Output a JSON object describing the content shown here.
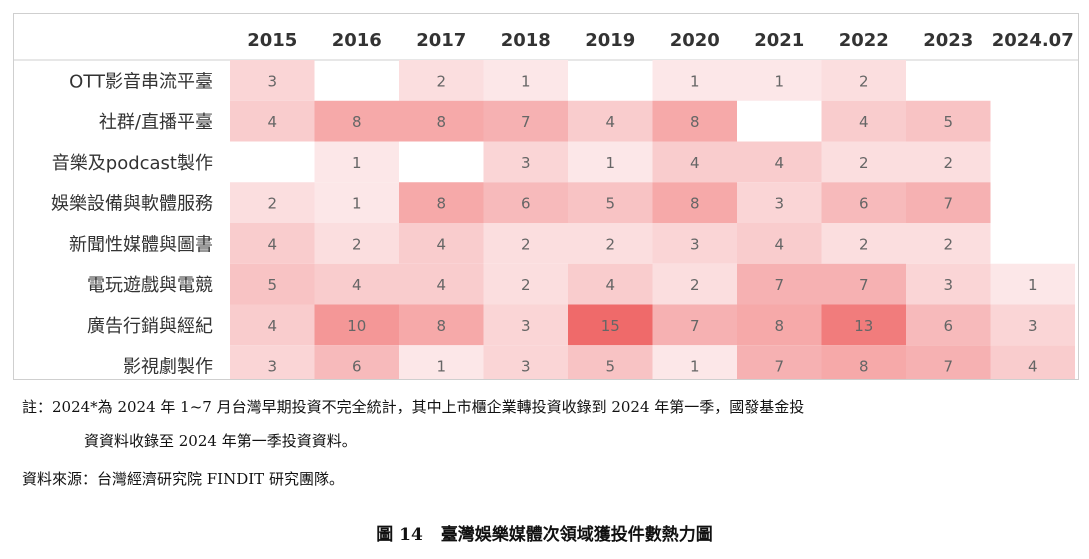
{
  "chart_data": {
    "type": "heatmap",
    "columns": [
      "2015",
      "2016",
      "2017",
      "2018",
      "2019",
      "2020",
      "2021",
      "2022",
      "2023",
      "2024.07"
    ],
    "rows": [
      "OTT影音串流平臺",
      "社群/直播平臺",
      "音樂及podcast製作",
      "娛樂設備與軟體服務",
      "新聞性媒體與圖書",
      "電玩遊戲與電競",
      "廣告行銷與經紀",
      "影視劇製作"
    ],
    "values": [
      [
        3,
        null,
        2,
        1,
        null,
        1,
        1,
        2,
        null,
        null
      ],
      [
        4,
        8,
        8,
        7,
        4,
        8,
        null,
        4,
        5,
        null
      ],
      [
        null,
        1,
        null,
        3,
        1,
        4,
        4,
        2,
        2,
        null
      ],
      [
        2,
        1,
        8,
        6,
        5,
        8,
        3,
        6,
        7,
        null
      ],
      [
        4,
        2,
        4,
        2,
        2,
        3,
        4,
        2,
        2,
        null
      ],
      [
        5,
        4,
        4,
        2,
        4,
        2,
        7,
        7,
        3,
        1
      ],
      [
        4,
        10,
        8,
        3,
        15,
        7,
        8,
        13,
        6,
        3
      ],
      [
        3,
        6,
        1,
        3,
        5,
        1,
        7,
        8,
        7,
        4
      ]
    ],
    "vmax": 15,
    "colors": {
      "high": "#ef6a6a",
      "low": "#fdf0f1",
      "text": "#666666",
      "header_text": "#333333",
      "divider": "#cfcfcf"
    }
  },
  "notes": {
    "line1": "註：2024*為 2024 年 1~7 月台灣早期投資不完全統計，其中上市櫃企業轉投資收錄到 2024 年第一季，國發基金投",
    "line2": "資資料收錄至 2024 年第一季投資資料。",
    "source": "資料來源：台灣經濟研究院 FINDIT 研究團隊。"
  },
  "caption": {
    "number": "圖 14",
    "title": "臺灣娛樂媒體次領域獲投件數熱力圖"
  }
}
